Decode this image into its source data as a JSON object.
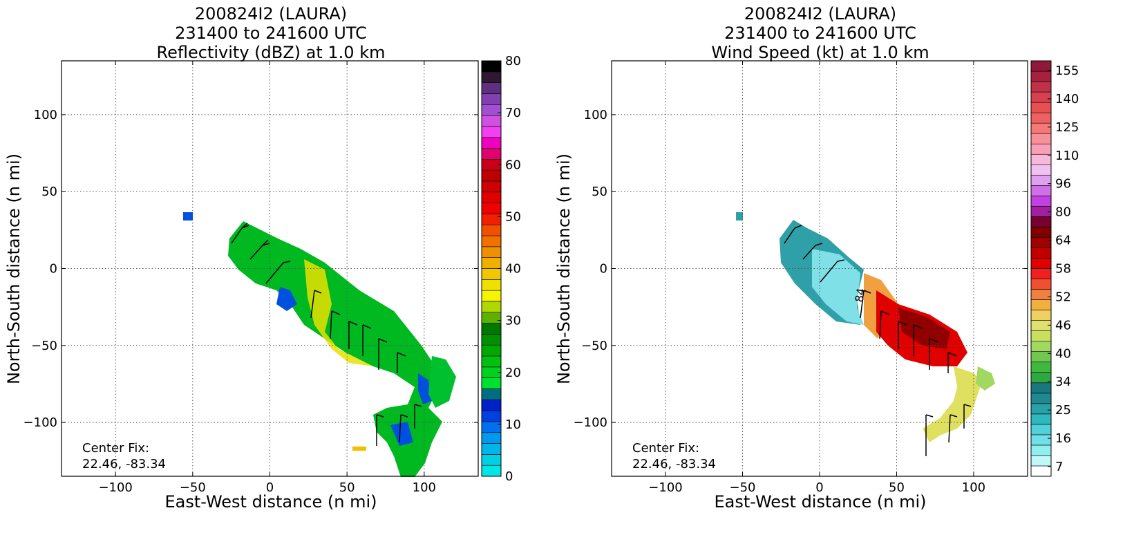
{
  "chart_data": [
    {
      "type": "heatmap",
      "title_lines": [
        "200824I2 (LAURA)",
        "231400 to 241600 UTC",
        "Reflectivity (dBZ) at 1.0 km"
      ],
      "xlabel": "East-West distance (n mi)",
      "ylabel": "North-South distance (n mi)",
      "xlim": [
        -135,
        135
      ],
      "ylim": [
        -135,
        135
      ],
      "xticks": [
        "−100",
        "−50",
        "0",
        "50",
        "100"
      ],
      "xtick_values": [
        -100,
        -50,
        0,
        50,
        100
      ],
      "yticks": [
        "100",
        "50",
        "0",
        "−50",
        "−100"
      ],
      "ytick_values": [
        100,
        50,
        0,
        -50,
        -100
      ],
      "grid": true,
      "annotation": [
        "Center Fix:",
        "22.46, -83.34"
      ],
      "colorbar": {
        "labels": [
          "80",
          "70",
          "60",
          "50",
          "40",
          "30",
          "20",
          "10",
          "0"
        ],
        "label_values": [
          80,
          70,
          60,
          50,
          40,
          30,
          20,
          10,
          0
        ],
        "min": 0,
        "max": 80,
        "colors": [
          "#00e5e5",
          "#00cfe5",
          "#00b5ea",
          "#0099f0",
          "#0070f0",
          "#0040e0",
          "#0020c8",
          "#006e80",
          "#00e030",
          "#00d020",
          "#00c010",
          "#00a800",
          "#009000",
          "#007800",
          "#60b000",
          "#b0d800",
          "#f5f500",
          "#f0e000",
          "#f0c800",
          "#f0b000",
          "#f09000",
          "#f07000",
          "#f05000",
          "#f02000",
          "#f00000",
          "#e00000",
          "#d00000",
          "#c00000",
          "#c80018",
          "#e00070",
          "#f000c0",
          "#f040f0",
          "#d050e0",
          "#a050d0",
          "#8040b0",
          "#603080",
          "#301830",
          "#000000"
        ]
      },
      "has_wind_barbs": true
    },
    {
      "type": "heatmap",
      "title_lines": [
        "200824I2 (LAURA)",
        "231400 to 241600 UTC",
        "Wind Speed (kt) at 1.0 km"
      ],
      "xlabel": "East-West distance (n mi)",
      "ylabel": "North-South distance (n mi)",
      "xlim": [
        -135,
        135
      ],
      "ylim": [
        -135,
        135
      ],
      "xticks": [
        "−100",
        "−50",
        "0",
        "50",
        "100"
      ],
      "xtick_values": [
        -100,
        -50,
        0,
        50,
        100
      ],
      "yticks": [
        "100",
        "50",
        "0",
        "−50",
        "−100"
      ],
      "ytick_values": [
        100,
        50,
        0,
        -50,
        -100
      ],
      "grid": true,
      "annotation": [
        "Center Fix:",
        "22.46, -83.34"
      ],
      "contour_label": "84",
      "colorbar": {
        "labels": [
          "155",
          "140",
          "125",
          "110",
          "96",
          "80",
          "64",
          "58",
          "52",
          "46",
          "40",
          "34",
          "25",
          "16",
          "7"
        ],
        "colors": [
          "#ffffff",
          "#c0f8f8",
          "#90eef0",
          "#70e0e8",
          "#50d0d8",
          "#30b8c0",
          "#2aa0a8",
          "#208890",
          "#187880",
          "#30a840",
          "#40b840",
          "#70c850",
          "#a0d860",
          "#c8e060",
          "#e0e070",
          "#f0d060",
          "#f0b040",
          "#f08040",
          "#f05030",
          "#f02020",
          "#e00000",
          "#c00000",
          "#a00000",
          "#800000",
          "#780030",
          "#a020a0",
          "#c040e0",
          "#d070e8",
          "#e0a0f0",
          "#f0c0f0",
          "#f8b8d8",
          "#f8a0b8",
          "#f89098",
          "#f87878",
          "#f06060",
          "#e85050",
          "#d84050",
          "#c03048",
          "#a82040",
          "#901838"
        ]
      },
      "has_wind_barbs": true
    }
  ]
}
